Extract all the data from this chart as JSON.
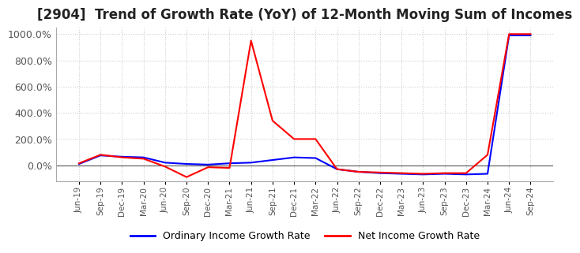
{
  "title": "[2904]  Trend of Growth Rate (YoY) of 12-Month Moving Sum of Incomes",
  "title_fontsize": 12,
  "ylim": [
    -120,
    1050
  ],
  "yticks": [
    0,
    200,
    400,
    600,
    800,
    1000
  ],
  "ytick_labels": [
    "0.0%",
    "200.0%",
    "400.0%",
    "600.0%",
    "800.0%",
    "1000.0%"
  ],
  "background_color": "#ffffff",
  "plot_bg_color": "#ffffff",
  "grid_color": "#cccccc",
  "legend_labels": [
    "Ordinary Income Growth Rate",
    "Net Income Growth Rate"
  ],
  "legend_colors": [
    "#0000ff",
    "#ff0000"
  ],
  "x_labels": [
    "Jun-19",
    "Sep-19",
    "Dec-19",
    "Mar-20",
    "Jun-20",
    "Sep-20",
    "Dec-20",
    "Mar-21",
    "Jun-21",
    "Sep-21",
    "Dec-21",
    "Mar-22",
    "Jun-22",
    "Sep-22",
    "Dec-22",
    "Mar-23",
    "Jun-23",
    "Sep-23",
    "Dec-23",
    "Mar-24",
    "Jun-24",
    "Sep-24"
  ],
  "ordinary_income": [
    10,
    75,
    65,
    60,
    20,
    10,
    5,
    15,
    20,
    40,
    60,
    55,
    -30,
    -50,
    -60,
    -65,
    -70,
    -65,
    -70,
    -65,
    990,
    990
  ],
  "net_income": [
    15,
    80,
    60,
    50,
    -10,
    -90,
    -15,
    -20,
    950,
    340,
    200,
    200,
    -30,
    -50,
    -55,
    -60,
    -65,
    -60,
    -60,
    80,
    1000,
    1000
  ]
}
